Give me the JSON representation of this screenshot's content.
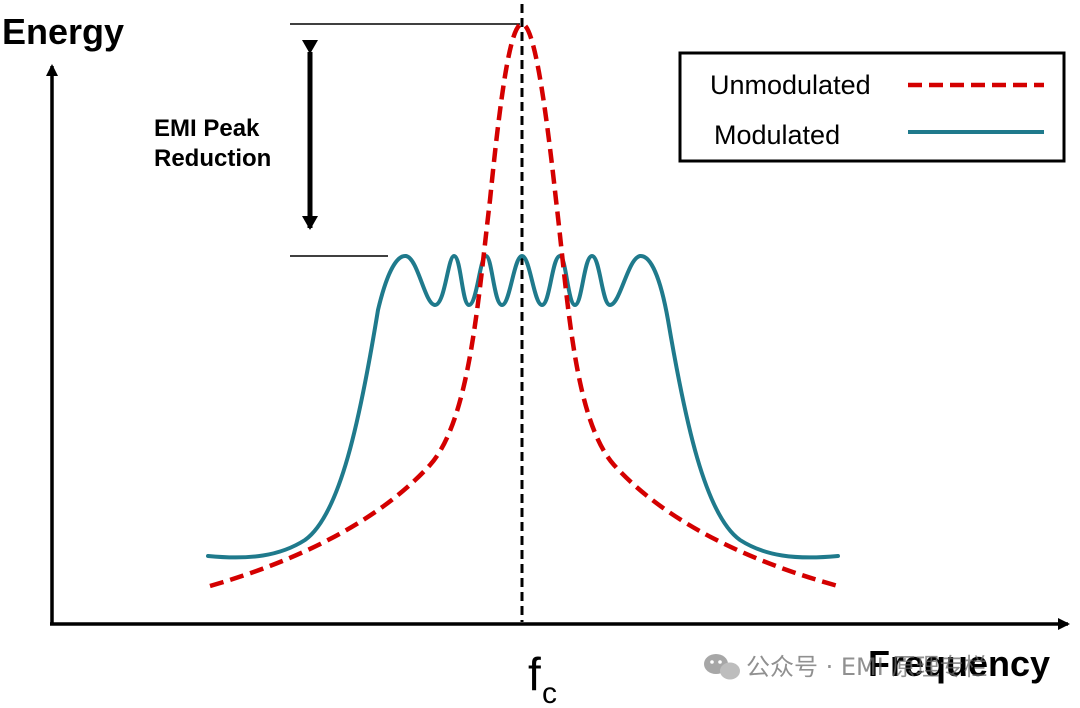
{
  "diagram": {
    "y_axis_label": "Energy",
    "x_axis_label": "Frequency",
    "center_label_main": "f",
    "center_label_sub": "c",
    "annotation_line1": "EMI Peak",
    "annotation_line2": "Reduction"
  },
  "legend": {
    "items": [
      {
        "label": "Unmodulated",
        "color": "#d40000",
        "style": "dashed"
      },
      {
        "label": "Modulated",
        "color": "#1f7a8c",
        "style": "solid"
      }
    ]
  },
  "watermark": {
    "text": "公众号 · EMI 原理专栏"
  },
  "colors": {
    "unmodulated": "#d40000",
    "modulated": "#1f7a8c",
    "axis": "#000000"
  }
}
